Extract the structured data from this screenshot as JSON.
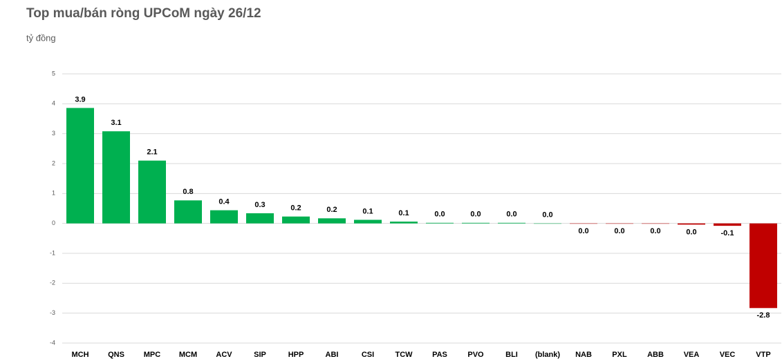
{
  "chart_data": {
    "type": "bar",
    "title": "Top mua/bán ròng UPCoM ngày 26/12",
    "y_axis_label": "tỷ đồng",
    "categories": [
      "MCH",
      "QNS",
      "MPC",
      "MCM",
      "ACV",
      "SIP",
      "HPP",
      "ABI",
      "CSI",
      "TCW",
      "PAS",
      "PVO",
      "BLI",
      "(blank)",
      "NAB",
      "PXL",
      "ABB",
      "VEA",
      "VEC",
      "VTP"
    ],
    "values": [
      3.86,
      3.08,
      2.1,
      0.77,
      0.44,
      0.34,
      0.23,
      0.17,
      0.12,
      0.06,
      0.02,
      0.02,
      0.02,
      0,
      -0.01,
      -0.01,
      -0.01,
      -0.04,
      -0.08,
      -2.83
    ],
    "value_labels": [
      "3.9",
      "3.1",
      "2.1",
      "0.8",
      "0.4",
      "0.3",
      "0.2",
      "0.2",
      "0.1",
      "0.1",
      "0.0",
      "0.0",
      "0.0",
      "0.0",
      "0.0",
      "0.0",
      "0.0",
      "0.0",
      "-0.1",
      "-2.8"
    ],
    "positive_color": "#00b050",
    "negative_color": "#c00000",
    "ylim": [
      -4,
      5
    ],
    "yticks": [
      -4,
      -3,
      -2,
      -1,
      0,
      1,
      2,
      3,
      4,
      5
    ],
    "grid": true
  }
}
